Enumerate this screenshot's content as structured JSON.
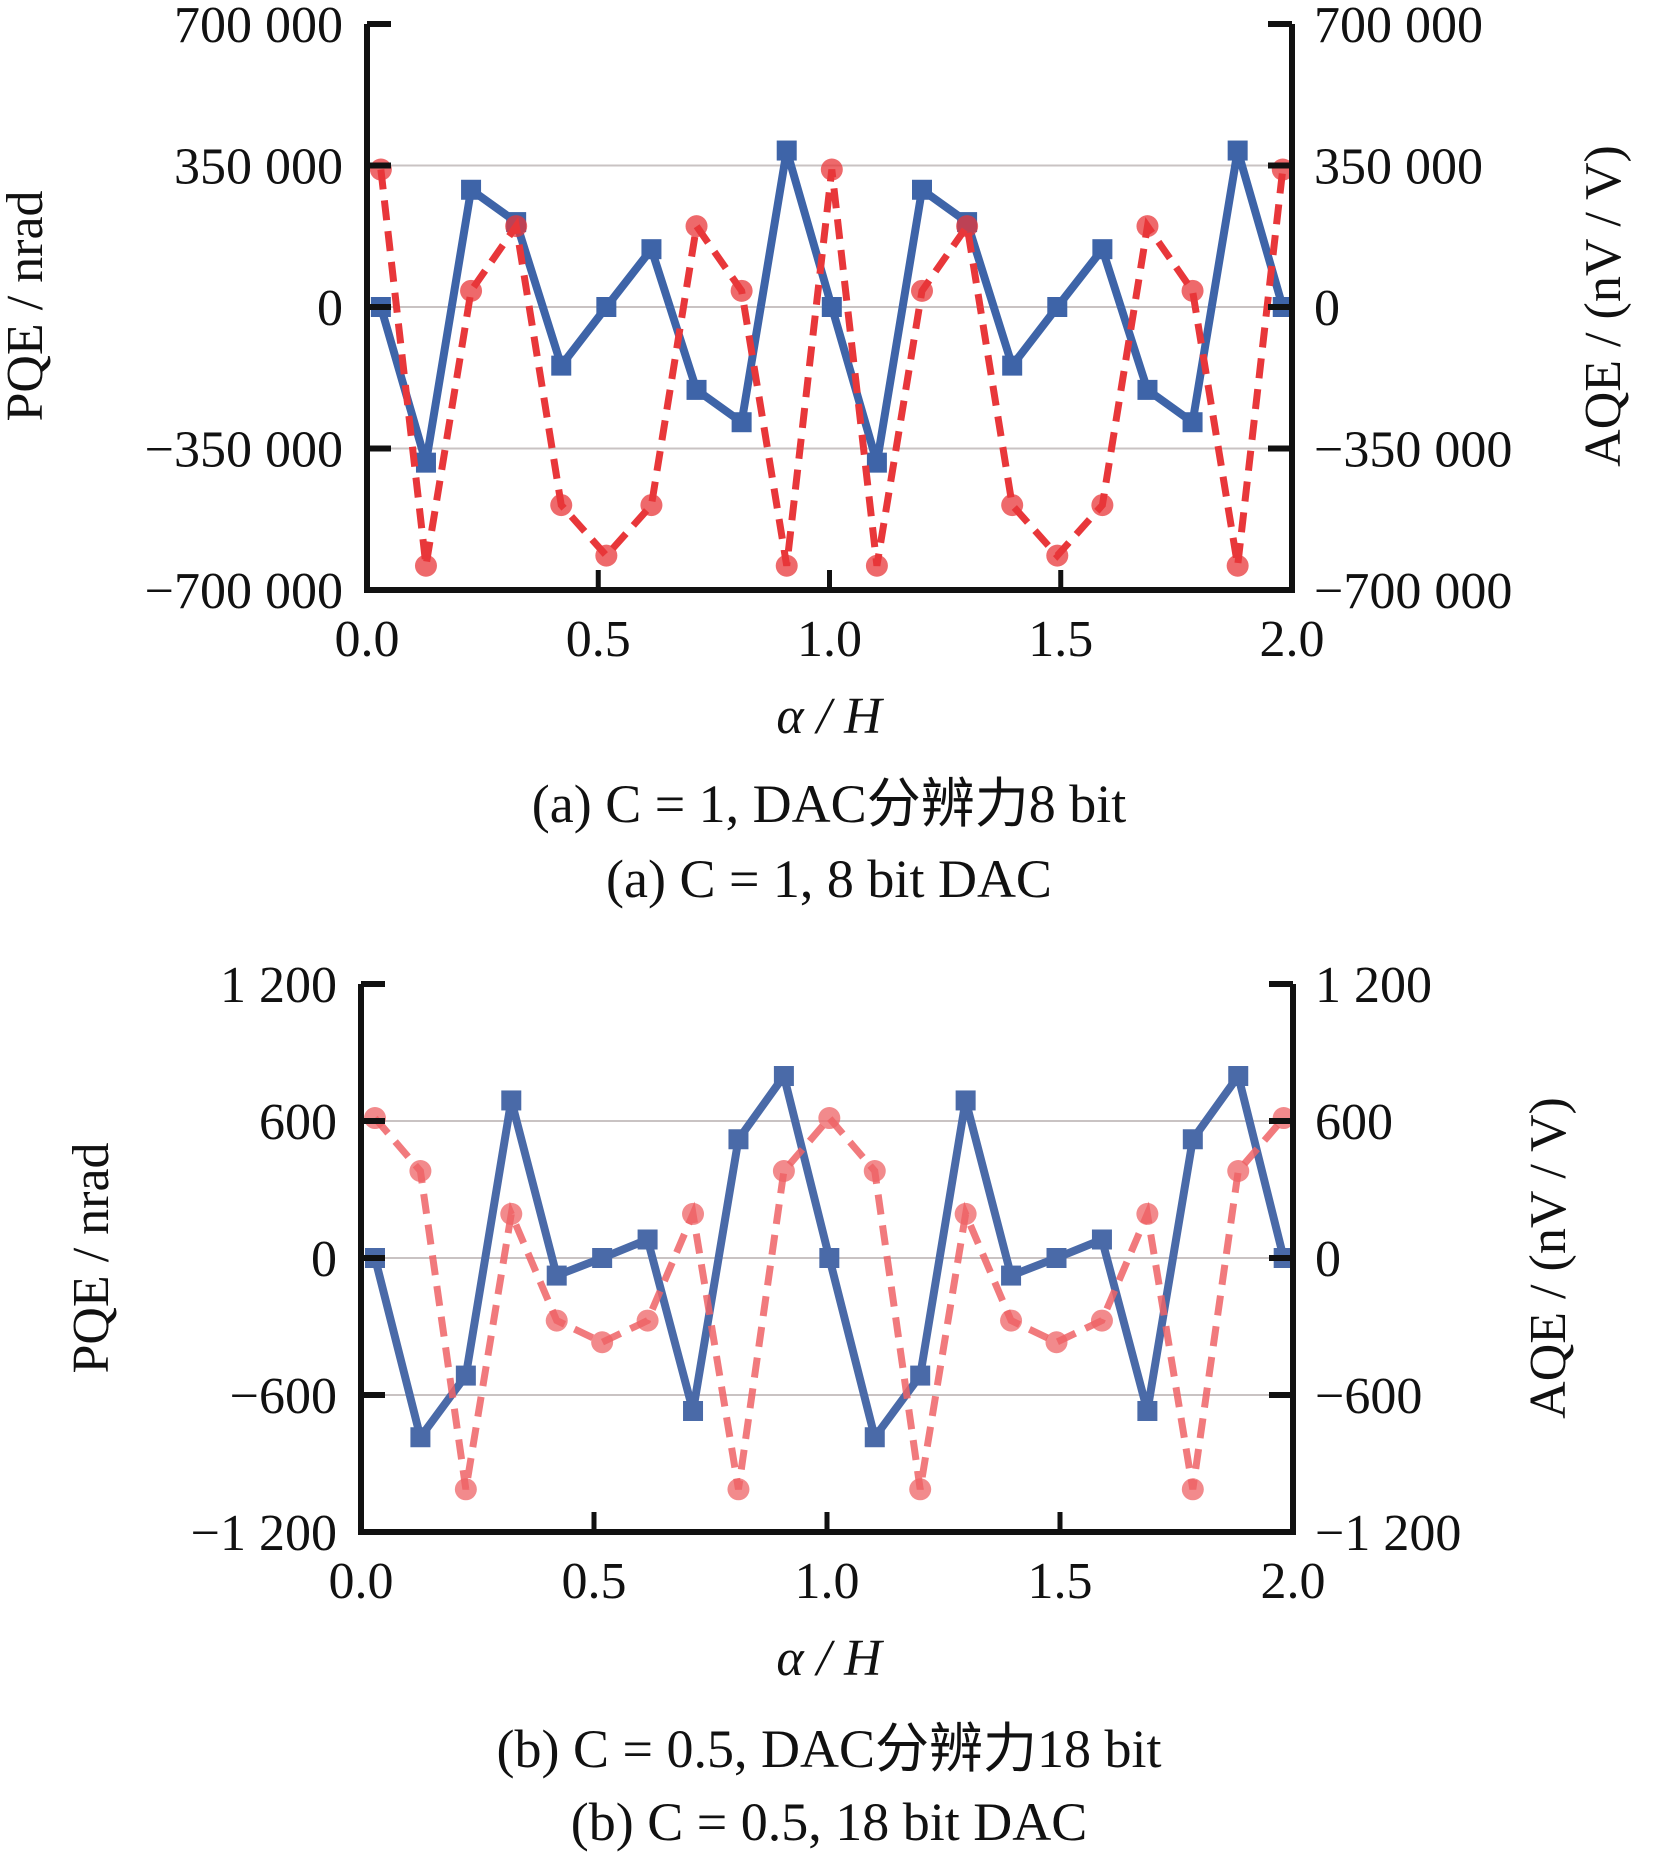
{
  "chart_data": [
    {
      "type": "line",
      "panel": "a",
      "xlabel": "α / H",
      "ylabel_left": "PQE / nrad",
      "ylabel_right": "AQE / (nV / V)",
      "xlim": [
        0.0,
        2.0
      ],
      "ylim": [
        -700000,
        700000
      ],
      "ylim_right": [
        -700000,
        700000
      ],
      "x_ticks": [
        "0.0",
        "0.5",
        "1.0",
        "1.5",
        "2.0"
      ],
      "x_tick_values": [
        0.0,
        0.5,
        1.0,
        1.5,
        2.0
      ],
      "y_ticks": [
        "700 000",
        "350 000",
        "0",
        "−350 000",
        "−700 000"
      ],
      "y_tick_values": [
        700000,
        350000,
        0,
        -350000,
        -700000
      ],
      "y_ticks_right": [
        "700 000",
        "350 000",
        "0",
        "−350 000",
        "−700 000"
      ],
      "grid": "horizontal",
      "caption_cn": "(a) C = 1, DAC分辨力8 bit",
      "caption_en": "(a) C = 1, 8 bit DAC",
      "x": [
        0.03,
        0.1275,
        0.225,
        0.3225,
        0.42,
        0.5175,
        0.615,
        0.7125,
        0.81,
        0.9075,
        1.005,
        1.1025,
        1.2,
        1.2975,
        1.395,
        1.4925,
        1.59,
        1.6875,
        1.785,
        1.8825,
        1.98
      ],
      "series": [
        {
          "name": "PQE",
          "axis": "left",
          "color": "#3e64a8",
          "style": "solid",
          "marker": "square",
          "values": [
            0,
            -385000,
            290000,
            210000,
            -145000,
            0,
            143000,
            -205000,
            -285000,
            387000,
            0,
            -385000,
            290000,
            210000,
            -145000,
            0,
            143000,
            -205000,
            -285000,
            387000,
            0
          ]
        },
        {
          "name": "AQE",
          "axis": "right",
          "color": "#e8373a",
          "style": "dashed",
          "marker": "circle",
          "values": [
            340000,
            -640000,
            40000,
            200000,
            -490000,
            -615000,
            -490000,
            200000,
            40000,
            -640000,
            340000,
            -640000,
            40000,
            200000,
            -490000,
            -615000,
            -490000,
            200000,
            40000,
            -640000,
            340000
          ]
        }
      ]
    },
    {
      "type": "line",
      "panel": "b",
      "xlabel": "α / H",
      "ylabel_left": "PQE / nrad",
      "ylabel_right": "AQE / (nV / V)",
      "xlim": [
        0.0,
        2.0
      ],
      "ylim": [
        -1200,
        1200
      ],
      "ylim_right": [
        -1200,
        1200
      ],
      "x_ticks": [
        "0.0",
        "0.5",
        "1.0",
        "1.5",
        "2.0"
      ],
      "x_tick_values": [
        0.0,
        0.5,
        1.0,
        1.5,
        2.0
      ],
      "y_ticks": [
        "1 200",
        "600",
        "0",
        "−600",
        "−1 200"
      ],
      "y_tick_values": [
        1200,
        600,
        0,
        -600,
        -1200
      ],
      "y_ticks_right": [
        "1 200",
        "600",
        "0",
        "−600",
        "−1 200"
      ],
      "grid": "horizontal",
      "caption_cn": "(b) C = 0.5, DAC分辨力18 bit",
      "caption_en": "(b) C = 0.5, 18 bit DAC",
      "x": [
        0.03,
        0.1275,
        0.225,
        0.3225,
        0.42,
        0.5175,
        0.615,
        0.7125,
        0.81,
        0.9075,
        1.005,
        1.1025,
        1.2,
        1.2975,
        1.395,
        1.4925,
        1.59,
        1.6875,
        1.785,
        1.8825,
        1.98
      ],
      "series": [
        {
          "name": "PQE",
          "axis": "left",
          "color": "#4a6aa8",
          "style": "solid",
          "marker": "square",
          "values": [
            0,
            -785,
            -515,
            690,
            -77,
            0,
            81,
            -670,
            520,
            797,
            0,
            -785,
            -515,
            690,
            -77,
            0,
            81,
            -670,
            520,
            797,
            0
          ]
        },
        {
          "name": "AQE",
          "axis": "right",
          "color": "#ee6366",
          "style": "dashed",
          "marker": "circle",
          "values": [
            613,
            381,
            -1013,
            193,
            -274,
            -369,
            -274,
            193,
            -1013,
            381,
            613,
            381,
            -1013,
            193,
            -274,
            -369,
            -274,
            193,
            -1013,
            381,
            613
          ]
        }
      ]
    }
  ]
}
